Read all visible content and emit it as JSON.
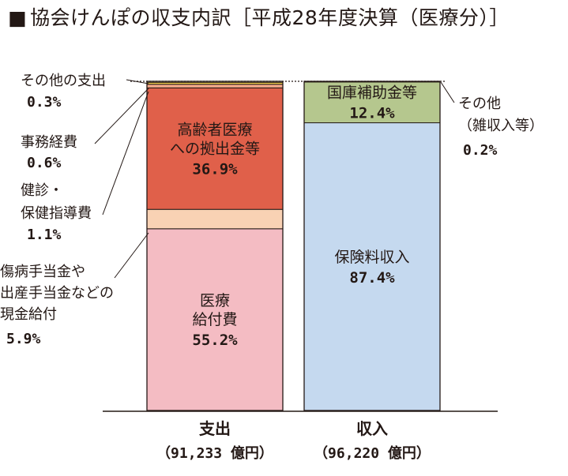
{
  "chart_data": {
    "type": "bar",
    "stacked": true,
    "normalized_percent": true,
    "title": "協会けんぽの収支内訳［平成28年度決算（医療分）］",
    "title_marker": "■",
    "categories": [
      "支出",
      "収入"
    ],
    "category_totals": [
      "（91,233 億円）",
      "（96,220 億円）"
    ],
    "columns": [
      {
        "name": "支出",
        "total_label": "（91,233 億円）",
        "segments": [
          {
            "name": "医療給付費",
            "label_lines": [
              "医療",
              "給付費"
            ],
            "value": 55.2,
            "value_label": "55.2%",
            "color": "#f4bcc3",
            "label_inside": true
          },
          {
            "name": "傷病手当金や出産手当金などの現金給付",
            "label_lines": [
              "傷病手当金や",
              "出産手当金などの",
              "現金給付"
            ],
            "value": 5.9,
            "value_label": "5.9%",
            "color": "#f9d2b4",
            "label_inside": false
          },
          {
            "name": "高齢者医療への拠出金等",
            "label_lines": [
              "高齢者医療",
              "への拠出金等"
            ],
            "value": 36.9,
            "value_label": "36.9%",
            "color": "#e0604a",
            "label_inside": true
          },
          {
            "name": "健診・保健指導費",
            "label_lines": [
              "健診・",
              "保健指導費"
            ],
            "value": 1.1,
            "value_label": "1.1%",
            "color": "#f6a98a",
            "label_inside": false
          },
          {
            "name": "事務経費",
            "label_lines": [
              "事務経費"
            ],
            "value": 0.6,
            "value_label": "0.6%",
            "color": "#f8d24e",
            "label_inside": false
          },
          {
            "name": "その他の支出",
            "label_lines": [
              "その他の支出"
            ],
            "value": 0.3,
            "value_label": "0.3%",
            "color": "#ffffff",
            "label_inside": false
          }
        ]
      },
      {
        "name": "収入",
        "total_label": "（96,220 億円）",
        "segments": [
          {
            "name": "保険料収入",
            "label_lines": [
              "保険料収入"
            ],
            "value": 87.4,
            "value_label": "87.4%",
            "color": "#c5d9ef",
            "label_inside": true
          },
          {
            "name": "国庫補助金等",
            "label_lines": [
              "国庫補助金等"
            ],
            "value": 12.4,
            "value_label": "12.4%",
            "color": "#b5c78e",
            "label_inside": true
          },
          {
            "name": "その他(雑収入等)",
            "label_lines": [
              "その他",
              "（雑収入等）"
            ],
            "value": 0.2,
            "value_label": "0.2%",
            "color": "#ffffff",
            "label_inside": false
          }
        ]
      }
    ],
    "ylim": [
      0,
      100
    ],
    "xlabel": "",
    "ylabel": "",
    "grid": false,
    "legend": "none"
  }
}
